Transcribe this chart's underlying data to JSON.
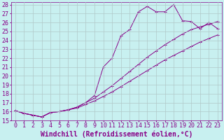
{
  "xlabel": "Windchill (Refroidissement éolien,°C)",
  "bg_color": "#c8f0f0",
  "line_color": "#880088",
  "xlim": [
    -0.5,
    23.5
  ],
  "ylim": [
    15,
    28.3
  ],
  "xticks": [
    0,
    1,
    2,
    3,
    4,
    5,
    6,
    7,
    8,
    9,
    10,
    11,
    12,
    13,
    14,
    15,
    16,
    17,
    18,
    19,
    20,
    21,
    22,
    23
  ],
  "yticks": [
    15,
    16,
    17,
    18,
    19,
    20,
    21,
    22,
    23,
    24,
    25,
    26,
    27,
    28
  ],
  "x": [
    0,
    1,
    2,
    3,
    4,
    5,
    6,
    7,
    8,
    9,
    10,
    11,
    12,
    13,
    14,
    15,
    16,
    17,
    18,
    19,
    20,
    21,
    22,
    23
  ],
  "s1y": [
    16.1,
    15.8,
    15.6,
    15.4,
    15.9,
    16.0,
    16.2,
    16.4,
    16.8,
    17.2,
    17.7,
    18.2,
    18.8,
    19.4,
    20.0,
    20.6,
    21.2,
    21.8,
    22.3,
    22.8,
    23.3,
    23.8,
    24.2,
    24.6
  ],
  "s2y": [
    16.1,
    15.8,
    15.6,
    15.4,
    15.9,
    16.0,
    16.2,
    16.5,
    17.0,
    17.5,
    18.2,
    18.9,
    19.7,
    20.5,
    21.3,
    22.1,
    22.8,
    23.5,
    24.1,
    24.7,
    25.2,
    25.5,
    25.8,
    26.1
  ],
  "s3y": [
    16.1,
    15.8,
    15.6,
    15.4,
    15.9,
    16.0,
    16.2,
    16.5,
    17.0,
    17.8,
    21.0,
    22.0,
    24.5,
    25.2,
    27.2,
    27.8,
    27.2,
    27.2,
    28.0,
    26.2,
    26.1,
    25.3,
    26.0,
    25.3
  ],
  "grid_color": "#b0c8c8",
  "tick_fontsize": 6,
  "xlabel_fontsize": 7
}
